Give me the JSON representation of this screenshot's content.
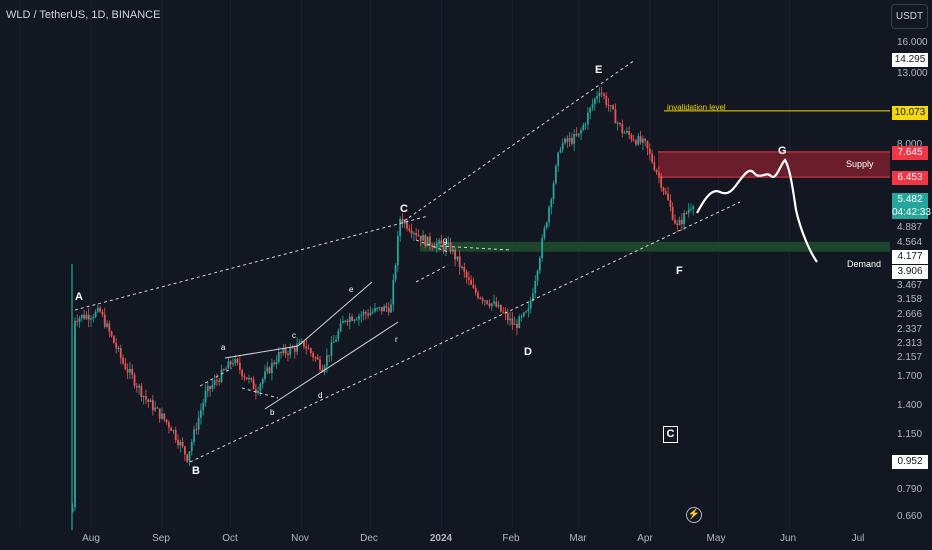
{
  "header": {
    "symbol": "WLD / TetherUS, 1D, BINANCE",
    "currency_button": "USDT"
  },
  "price_axis": {
    "ticks": [
      "16.000",
      "13.000",
      "8.000",
      "4.887",
      "4.564",
      "3.467",
      "3.158",
      "2.666",
      "2.337",
      "2.313",
      "2.157",
      "1.700",
      "1.400",
      "1.150",
      "0.790",
      "0.660"
    ],
    "badges": [
      {
        "text": "14.295",
        "bg": "#ffffff",
        "fg": "#131722"
      },
      {
        "text": "10.073",
        "bg": "#f5d800",
        "fg": "#131722"
      },
      {
        "text": "7.645",
        "bg": "#f23645",
        "fg": "#ffffff"
      },
      {
        "text": "6.453",
        "bg": "#f23645",
        "fg": "#ffffff"
      },
      {
        "text": "5.482",
        "sub": "04:42:33",
        "bg": "#26a69a",
        "fg": "#ffffff"
      },
      {
        "text": "4.177",
        "bg": "#ffffff",
        "fg": "#131722"
      },
      {
        "text": "3.906",
        "bg": "#ffffff",
        "fg": "#131722"
      },
      {
        "text": "0.952",
        "bg": "#ffffff",
        "fg": "#131722"
      }
    ]
  },
  "time_axis": [
    "Aug",
    "Sep",
    "Oct",
    "Nov",
    "Dec",
    "2024",
    "Feb",
    "Mar",
    "Apr",
    "May",
    "Jun",
    "Jul"
  ],
  "wave_labels": {
    "major": [
      "A",
      "B",
      "C",
      "D",
      "E",
      "F",
      "G"
    ],
    "minor": [
      "a",
      "b",
      "c",
      "d",
      "e",
      "r",
      "g"
    ]
  },
  "zones": {
    "supply": "Supply",
    "demand": "Demand",
    "invalidation": "invalidation level"
  },
  "corner_box": "C",
  "colors": {
    "up": "#26a69a",
    "down": "#ef5350",
    "supply": "#7a1f2b",
    "demand": "#1f4a2c",
    "invalidation": "#f5d800"
  },
  "chart_data": {
    "type": "candlestick",
    "symbol": "WLD / TetherUS",
    "timeframe": "1D",
    "exchange": "BINANCE",
    "x": [
      "Aug",
      "Sep",
      "Oct",
      "Nov",
      "Dec",
      "2024",
      "Feb",
      "Mar",
      "Apr",
      "May",
      "Jun",
      "Jul"
    ],
    "series": [
      {
        "values": [
          {
            "t": "Jul 24",
            "c": 0.7
          },
          {
            "t": "Jul 25",
            "c": 2.5
          },
          {
            "t": "Aug 05",
            "c": 2.6
          },
          {
            "t": "Aug 15",
            "c": 1.85
          },
          {
            "t": "Aug 25",
            "c": 1.45
          },
          {
            "t": "Sep 05",
            "c": 1.2
          },
          {
            "t": "Sep 12",
            "c": 0.98
          },
          {
            "t": "Sep 20",
            "c": 1.5
          },
          {
            "t": "Oct 02",
            "c": 1.88
          },
          {
            "t": "Oct 12",
            "c": 1.55
          },
          {
            "t": "Oct 22",
            "c": 1.95
          },
          {
            "t": "Nov 02",
            "c": 2.1
          },
          {
            "t": "Nov 10",
            "c": 1.8
          },
          {
            "t": "Nov 20",
            "c": 2.5
          },
          {
            "t": "Dec 01",
            "c": 2.6
          },
          {
            "t": "Dec 10",
            "c": 2.7
          },
          {
            "t": "Dec 14",
            "c": 4.9
          },
          {
            "t": "Dec 25",
            "c": 4.2
          },
          {
            "t": "Jan 05",
            "c": 4.0
          },
          {
            "t": "Jan 15",
            "c": 3.0
          },
          {
            "t": "Jan 25",
            "c": 2.7
          },
          {
            "t": "Feb 02",
            "c": 2.37
          },
          {
            "t": "Feb 08",
            "c": 2.6
          },
          {
            "t": "Feb 15",
            "c": 4.5
          },
          {
            "t": "Feb 22",
            "c": 8.0
          },
          {
            "t": "Mar 01",
            "c": 8.5
          },
          {
            "t": "Mar 10",
            "c": 11.7
          },
          {
            "t": "Mar 20",
            "c": 8.8
          },
          {
            "t": "Mar 30",
            "c": 8.0
          },
          {
            "t": "Apr 05",
            "c": 6.5
          },
          {
            "t": "Apr 13",
            "c": 4.6
          },
          {
            "t": "Apr 20",
            "c": 5.48
          }
        ]
      }
    ],
    "levels": {
      "invalidation": 10.073,
      "supply": [
        6.453,
        7.645
      ],
      "demand": [
        3.906,
        4.177
      ]
    },
    "wave_points": {
      "A": 2.9,
      "B": 0.95,
      "C": 5.0,
      "D": 2.3,
      "E": 11.8,
      "F": 3.9,
      "G": 7.2
    },
    "y_scale": "log",
    "ylim": [
      0.6,
      20
    ]
  }
}
